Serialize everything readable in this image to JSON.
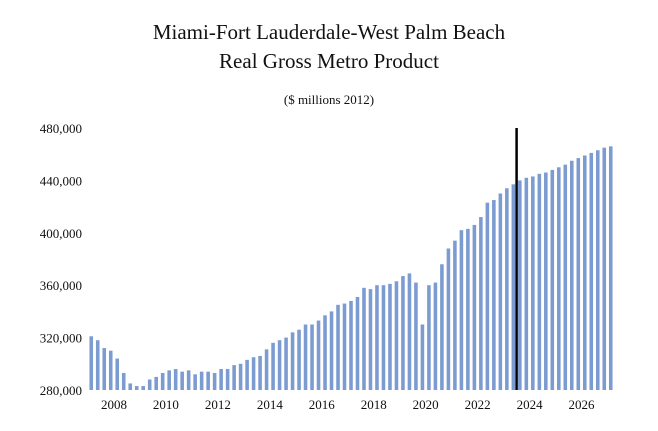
{
  "colors": {
    "bar": "#7b9bd1",
    "marker": "#000000",
    "axis": "#bdbdbd"
  },
  "chart_data": {
    "type": "bar",
    "title": "Miami-Fort Lauderdale-West Palm Beach",
    "subtitle": "Real Gross Metro Product",
    "units": "($ millions 2012)",
    "xlabel": "",
    "ylabel": "",
    "ylim": [
      280000,
      480000
    ],
    "yticks": [
      280000,
      320000,
      360000,
      400000,
      440000,
      480000
    ],
    "ytick_labels": [
      "280,000",
      "320,000",
      "360,000",
      "400,000",
      "440,000",
      "480,000"
    ],
    "xlim": [
      2007.0,
      2027.25
    ],
    "xticks": [
      2008,
      2010,
      2012,
      2014,
      2016,
      2018,
      2020,
      2022,
      2024,
      2026
    ],
    "xtick_labels": [
      "2008",
      "2010",
      "2012",
      "2014",
      "2016",
      "2018",
      "2020",
      "2022",
      "2024",
      "2026"
    ],
    "forecast_marker_x": 2023.5,
    "series": [
      {
        "name": "Real Gross Metro Product",
        "start": 2007.0,
        "step": 0.25,
        "values": [
          321000,
          318000,
          312000,
          310000,
          304000,
          293000,
          285000,
          283000,
          283000,
          288000,
          290000,
          293000,
          295000,
          296000,
          294000,
          295000,
          292000,
          294000,
          294000,
          293000,
          296000,
          296000,
          299000,
          300000,
          303000,
          305000,
          306000,
          311000,
          316000,
          318000,
          320000,
          324000,
          326000,
          330000,
          330000,
          333000,
          337000,
          340000,
          345000,
          346000,
          348000,
          351000,
          358000,
          357000,
          360000,
          360000,
          361000,
          363000,
          367000,
          369000,
          362000,
          330000,
          360000,
          362000,
          376000,
          388000,
          394000,
          402000,
          403000,
          406000,
          412000,
          423000,
          425000,
          430000,
          434000,
          437000,
          440000,
          442000,
          443000,
          445000,
          446000,
          448000,
          450000,
          452000,
          455000,
          457000,
          459000,
          461000,
          463000,
          465000,
          466000
        ]
      }
    ]
  }
}
